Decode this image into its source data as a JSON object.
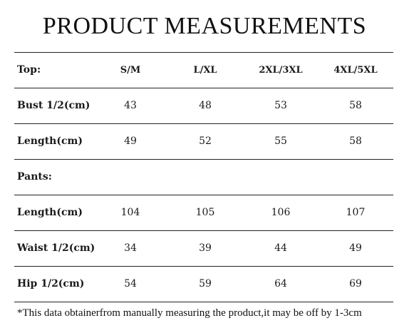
{
  "title": "PRODUCT MEASUREMENTS",
  "rows": [
    {
      "label": "Top:",
      "values": [
        "S/M",
        "L/XL",
        "2XL/3XL",
        "4XL/5XL"
      ]
    },
    {
      "label": "Bust 1/2(cm)",
      "values": [
        "43",
        "48",
        "53",
        "58"
      ]
    },
    {
      "label": "Length(cm)",
      "values": [
        "49",
        "52",
        "55",
        "58"
      ]
    },
    {
      "label": "Pants:",
      "values": [
        "",
        "",
        "",
        ""
      ]
    },
    {
      "label": "Length(cm)",
      "values": [
        "104",
        "105",
        "106",
        "107"
      ]
    },
    {
      "label": "Waist 1/2(cm)",
      "values": [
        "34",
        "39",
        "44",
        "49"
      ]
    },
    {
      "label": "Hip 1/2(cm)",
      "values": [
        "54",
        "59",
        "64",
        "69"
      ]
    }
  ],
  "footnote": "*This data obtainerfrom manually measuring the product,it may be off by 1-3cm"
}
